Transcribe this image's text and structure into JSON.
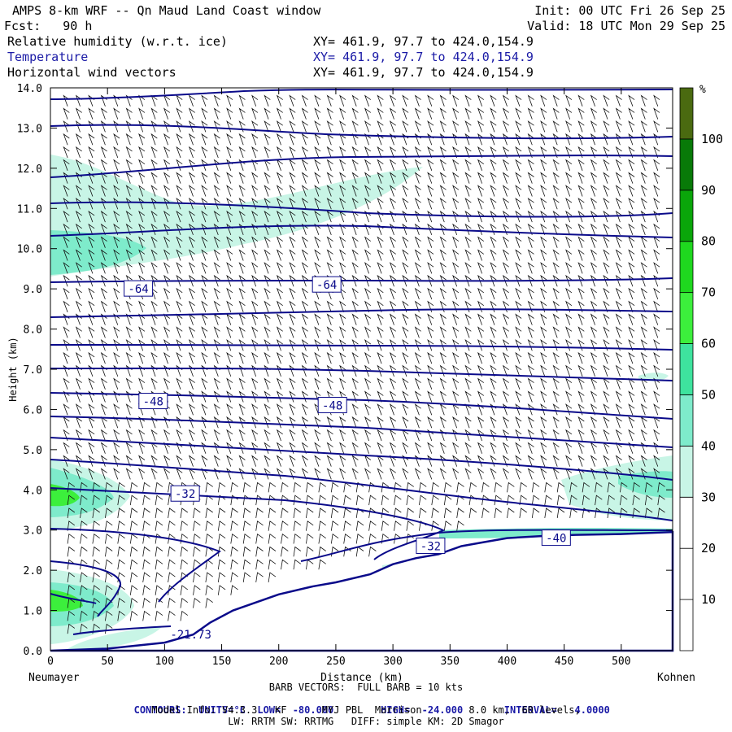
{
  "header": {
    "title": "AMPS 8-km WRF -- Qn Maud Land Coast window",
    "init": "Init: 00 UTC Fri 26 Sep 25",
    "fcst": "Fcst:   90 h",
    "valid": "Valid: 18 UTC Mon 29 Sep 25",
    "fields": [
      {
        "name": "Relative humidity (w.r.t. ice)",
        "xy": "XY= 461.9, 97.7 to 424.0,154.9"
      },
      {
        "name": "Temperature",
        "xy": "XY= 461.9, 97.7 to 424.0,154.9"
      },
      {
        "name": "Horizontal wind vectors",
        "xy": "XY= 461.9, 97.7 to 424.0,154.9"
      }
    ]
  },
  "chart_data": {
    "type": "heatmap",
    "ylabel": "Height (km)",
    "xlabel": "Distance (km)",
    "xlim": [
      0,
      545
    ],
    "ylim": [
      0,
      14
    ],
    "x_ticks": [
      0,
      50,
      100,
      150,
      200,
      250,
      300,
      350,
      400,
      450,
      500
    ],
    "y_ticks": [
      "0.0",
      "1.0",
      "2.0",
      "3.0",
      "4.0",
      "5.0",
      "6.0",
      "7.0",
      "8.0",
      "9.0",
      "10.0",
      "11.0",
      "12.0",
      "13.0",
      "14.0"
    ],
    "left_end_label": "Neumayer",
    "right_end_label": "Kohnen",
    "colorbar": {
      "unit": "%",
      "labels": [
        10,
        20,
        30,
        40,
        50,
        60,
        70,
        80,
        90,
        100
      ],
      "colors": [
        "#ffffff",
        "#ffffff",
        "#ffffff",
        "#c8f5e6",
        "#7eebcb",
        "#3ee39e",
        "#3cef3c",
        "#1fd81f",
        "#0aa60a",
        "#087a08",
        "#4a6a10"
      ]
    },
    "terrain_profile": [
      [
        0,
        0
      ],
      [
        50,
        0.05
      ],
      [
        100,
        0.2
      ],
      [
        125,
        0.4
      ],
      [
        140,
        0.7
      ],
      [
        160,
        1.0
      ],
      [
        180,
        1.2
      ],
      [
        200,
        1.4
      ],
      [
        230,
        1.6
      ],
      [
        250,
        1.7
      ],
      [
        280,
        1.9
      ],
      [
        300,
        2.15
      ],
      [
        320,
        2.3
      ],
      [
        340,
        2.4
      ],
      [
        360,
        2.6
      ],
      [
        380,
        2.7
      ],
      [
        400,
        2.8
      ],
      [
        430,
        2.85
      ],
      [
        460,
        2.88
      ],
      [
        500,
        2.9
      ],
      [
        545,
        2.95
      ]
    ],
    "temperature_contours": {
      "units": "°C",
      "low": -80.0,
      "high": -24.0,
      "interval": 4.0,
      "labels": [
        {
          "text": "-64",
          "x": 77,
          "y": 9.0
        },
        {
          "text": "-64",
          "x": 242,
          "y": 9.1
        },
        {
          "text": "-48",
          "x": 90,
          "y": 6.2
        },
        {
          "text": "-48",
          "x": 247,
          "y": 6.1
        },
        {
          "text": "-32",
          "x": 118,
          "y": 3.9
        },
        {
          "text": "-32",
          "x": 333,
          "y": 2.6
        },
        {
          "text": "-40",
          "x": 443,
          "y": 2.8
        },
        {
          "text": "-21.73",
          "x": 123,
          "y": 0.4
        }
      ]
    },
    "wind_barbs": {
      "legend": "BARB VECTORS:  FULL BARB = 10 kts"
    }
  },
  "footer": {
    "contours_prefix": "CONTOURS:",
    "units_text": "UNITS=°C",
    "low_text": "LOW=  -80.000",
    "high_text": "HIGH=  -24.000",
    "interval_text": "INTERVAL=   4.0000",
    "model_info": "Model Info: V4.3.3   KF      MYJ PBL  Morrison        8.0 km,  60 levels,",
    "physics": "LW: RRTM SW: RRTMG   DIFF: simple KM: 2D Smagor"
  }
}
